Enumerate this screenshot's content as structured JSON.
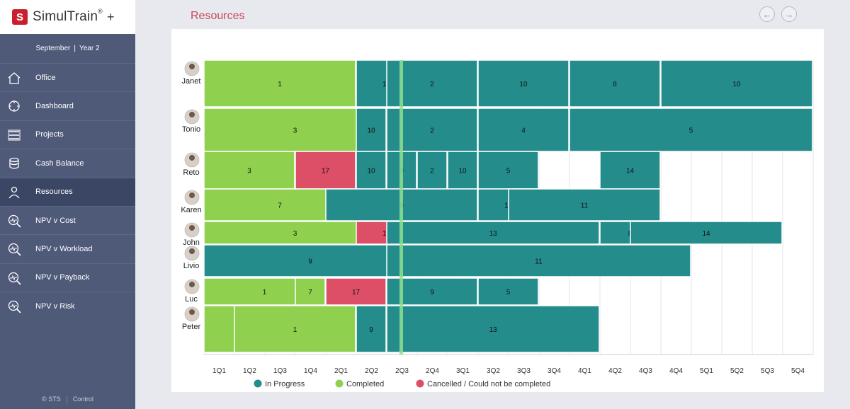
{
  "app": {
    "logo_letter": "S",
    "logo_name": "SimulTrain",
    "logo_reg": "®",
    "logo_plus": "+"
  },
  "session": {
    "month": "September",
    "year": "Year 2"
  },
  "nav": [
    {
      "label": "Office",
      "icon": "office-icon",
      "active": false
    },
    {
      "label": "Dashboard",
      "icon": "dashboard-icon",
      "active": false
    },
    {
      "label": "Projects",
      "icon": "projects-icon",
      "active": false
    },
    {
      "label": "Cash Balance",
      "icon": "coins-icon",
      "active": false
    },
    {
      "label": "Resources",
      "icon": "person-icon",
      "active": true
    },
    {
      "label": "NPV v Cost",
      "icon": "chart-magnifier-icon",
      "active": false
    },
    {
      "label": "NPV v Workload",
      "icon": "chart-magnifier-icon",
      "active": false
    },
    {
      "label": "NPV v Payback",
      "icon": "chart-magnifier-icon",
      "active": false
    },
    {
      "label": "NPV v Risk",
      "icon": "chart-magnifier-icon",
      "active": false
    }
  ],
  "footer": {
    "copyright": "© STS",
    "control": "Control"
  },
  "header": {
    "title": "Resources",
    "prev_icon": "←",
    "next_icon": "→"
  },
  "colors": {
    "in_progress": "#258c8c",
    "completed": "#8fd14f",
    "cancelled": "#dc4f66",
    "current_marker": "#8ee08e"
  },
  "chart_data": {
    "type": "gantt",
    "quarters": [
      "1Q1",
      "1Q2",
      "1Q3",
      "1Q4",
      "2Q1",
      "2Q2",
      "2Q3",
      "2Q4",
      "3Q1",
      "3Q2",
      "3Q3",
      "3Q4",
      "4Q1",
      "4Q2",
      "4Q3",
      "4Q4",
      "5Q1",
      "5Q2",
      "5Q3",
      "5Q4"
    ],
    "current_time": "2Q3",
    "legend": [
      {
        "key": "in_progress",
        "label": "In Progress"
      },
      {
        "key": "completed",
        "label": "Completed"
      },
      {
        "key": "cancelled",
        "label": "Cancelled / Could not be completed"
      }
    ],
    "resources": [
      {
        "name": "Janet",
        "tasks": [
          {
            "project": "1",
            "status": "completed",
            "start": "1Q1",
            "end": "2Q1"
          },
          {
            "project": "10",
            "status": "in_progress",
            "start": "2Q2",
            "end": "2Q3"
          },
          {
            "project": "2",
            "status": "in_progress",
            "start": "2Q3",
            "end": "3Q1"
          },
          {
            "project": "10",
            "status": "in_progress",
            "start": "3Q2",
            "end": "3Q4"
          },
          {
            "project": "8",
            "status": "in_progress",
            "start": "4Q1",
            "end": "4Q3"
          },
          {
            "project": "10",
            "status": "in_progress",
            "start": "4Q4",
            "end": "5Q4"
          }
        ]
      },
      {
        "name": "Tonio",
        "tasks": [
          {
            "project": "3",
            "status": "completed",
            "start": "1Q1",
            "end": "2Q2"
          },
          {
            "project": "10",
            "status": "in_progress",
            "start": "2Q3",
            "end": "2Q3"
          },
          {
            "project": "10",
            "status": "in_progress",
            "start": "2Q3",
            "end": "2Q3"
          },
          {
            "project": "10",
            "status": "in_progress",
            "start": "2Q2",
            "end": "2Q2"
          },
          {
            "project": "4",
            "status": "in_progress",
            "start": "2Q3",
            "end": "2Q3"
          },
          {
            "project": "2",
            "status": "in_progress",
            "start": "2Q3",
            "end": "3Q1"
          },
          {
            "project": "4",
            "status": "in_progress",
            "start": "3Q2",
            "end": "3Q4"
          },
          {
            "project": "5",
            "status": "in_progress",
            "start": "4Q1",
            "end": "5Q4"
          }
        ]
      },
      {
        "name": "Reto",
        "tasks": [
          {
            "project": "3",
            "status": "completed",
            "start": "1Q1",
            "end": "1Q3"
          },
          {
            "project": "17",
            "status": "cancelled",
            "start": "1Q4",
            "end": "2Q1"
          },
          {
            "project": "10",
            "status": "in_progress",
            "start": "2Q2",
            "end": "2Q2"
          },
          {
            "project": "9",
            "status": "in_progress",
            "start": "2Q3",
            "end": "2Q3"
          },
          {
            "project": "2",
            "status": "in_progress",
            "start": "2Q4",
            "end": "2Q4"
          },
          {
            "project": "10",
            "status": "in_progress",
            "start": "3Q1",
            "end": "3Q1"
          },
          {
            "project": "5",
            "status": "in_progress",
            "start": "3Q2",
            "end": "3Q3"
          },
          {
            "project": "14",
            "status": "in_progress",
            "start": "4Q2",
            "end": "4Q3"
          }
        ]
      },
      {
        "name": "Karen",
        "tasks": [
          {
            "project": "7",
            "status": "completed",
            "start": "1Q1",
            "end": "2Q1"
          },
          {
            "project": "9",
            "status": "in_progress",
            "start": "2Q1",
            "end": "3Q1"
          },
          {
            "project": "13",
            "status": "in_progress",
            "start": "3Q2",
            "end": "3Q3"
          },
          {
            "project": "11",
            "status": "in_progress",
            "start": "3Q3",
            "end": "4Q3"
          }
        ]
      },
      {
        "name": "John",
        "tasks": [
          {
            "project": "3",
            "status": "completed",
            "start": "1Q1",
            "end": "2Q2"
          },
          {
            "project": "17",
            "status": "cancelled",
            "start": "2Q2",
            "end": "2Q3"
          },
          {
            "project": "13",
            "status": "in_progress",
            "start": "2Q3",
            "end": "4Q1"
          },
          {
            "project": "8",
            "status": "in_progress",
            "start": "4Q2",
            "end": "4Q3"
          },
          {
            "project": "14",
            "status": "in_progress",
            "start": "4Q3",
            "end": "5Q3"
          }
        ]
      },
      {
        "name": "Livio",
        "tasks": [
          {
            "project": "9",
            "status": "in_progress",
            "start": "1Q1",
            "end": "2Q3"
          },
          {
            "project": "11",
            "status": "in_progress",
            "start": "2Q3",
            "end": "4Q4"
          }
        ]
      },
      {
        "name": "Luc",
        "tasks": [
          {
            "project": "1",
            "status": "completed",
            "start": "1Q1",
            "end": "1Q4"
          },
          {
            "project": "7",
            "status": "completed",
            "start": "1Q4",
            "end": "1Q4"
          },
          {
            "project": "17",
            "status": "cancelled",
            "start": "2Q1",
            "end": "2Q2"
          },
          {
            "project": "9",
            "status": "in_progress",
            "start": "2Q3",
            "end": "3Q1"
          },
          {
            "project": "5",
            "status": "in_progress",
            "start": "3Q2",
            "end": "3Q3"
          }
        ]
      },
      {
        "name": "Peter",
        "tasks": [
          {
            "project": "1",
            "status": "completed",
            "start": "1Q1",
            "end": "2Q1"
          },
          {
            "project": "1",
            "status": "completed",
            "start": "1Q2",
            "end": "2Q1"
          },
          {
            "project": "9",
            "status": "in_progress",
            "start": "2Q2",
            "end": "2Q2"
          },
          {
            "project": "13",
            "status": "in_progress",
            "start": "2Q3",
            "end": "4Q1"
          }
        ]
      }
    ]
  }
}
